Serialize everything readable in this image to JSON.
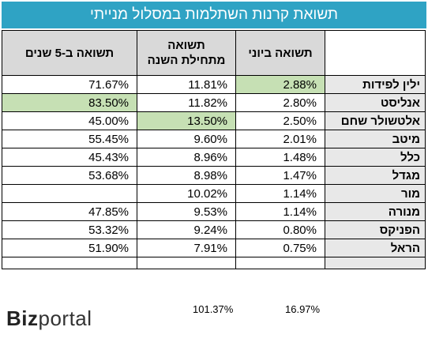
{
  "title": "תשואת קרנות השתלמות במסלול מנייתי",
  "headers": {
    "five_year": "תשואה ב-5 שנים",
    "ytd_line1": "תשואה",
    "ytd_line2": "מתחילת השנה",
    "june": "תשואה ביוני"
  },
  "rows": [
    {
      "name": "ילין לפידות",
      "five_year": "71.67%",
      "ytd": "11.81%",
      "june": "2.88%"
    },
    {
      "name": "אנליסט",
      "five_year": "83.50%",
      "ytd": "11.82%",
      "june": "2.80%"
    },
    {
      "name": "אלטשולר שחם",
      "five_year": "45.00%",
      "ytd": "13.50%",
      "june": "2.50%"
    },
    {
      "name": "מיטב",
      "five_year": "55.45%",
      "ytd": "9.60%",
      "june": "2.01%"
    },
    {
      "name": "כלל",
      "five_year": "45.43%",
      "ytd": "8.96%",
      "june": "1.48%"
    },
    {
      "name": "מגדל",
      "five_year": "53.68%",
      "ytd": "8.98%",
      "june": "1.47%"
    },
    {
      "name": "מור",
      "five_year": "",
      "ytd": "10.02%",
      "june": "1.14%"
    },
    {
      "name": "מנורה",
      "five_year": "47.85%",
      "ytd": "9.53%",
      "june": "1.14%"
    },
    {
      "name": "הפניקס",
      "five_year": "53.32%",
      "ytd": "9.24%",
      "june": "0.80%"
    },
    {
      "name": "הראל",
      "five_year": "51.90%",
      "ytd": "7.91%",
      "june": "0.75%"
    }
  ],
  "highlight_color": "#c6e0b4",
  "banner_color": "#2fa3c4",
  "sums": {
    "ytd": "101.37%",
    "june": "16.97%"
  },
  "logo": {
    "bold": "Biz",
    "regular": "portal"
  }
}
